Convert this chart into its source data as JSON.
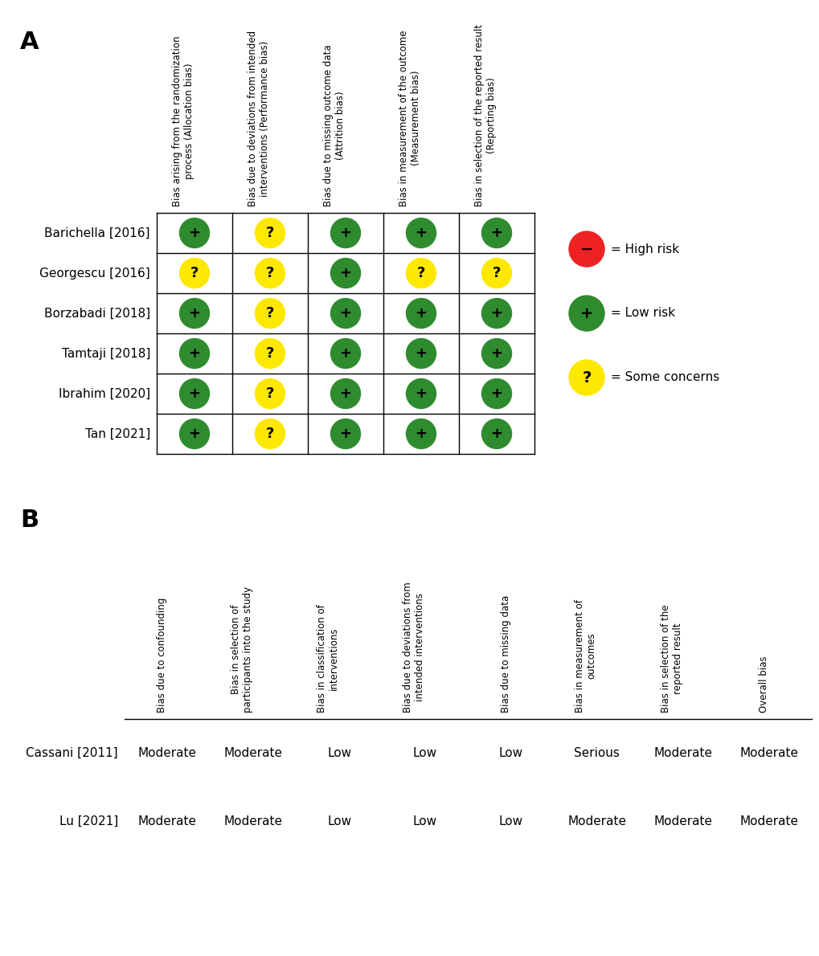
{
  "panel_A_label": "A",
  "panel_B_label": "B",
  "A_col_headers": [
    "Bias arising from the randomization\nprocess (Allocation bias)",
    "Bias due to deviations from intended\ninterventions (Performance bias)",
    "Bias due to missing outcome data\n(Attrition bias)",
    "Bias in measurement of the outcome\n(Measurement bias)",
    "Bias in selection of the reported result\n(Reporting bias)"
  ],
  "A_rows": [
    "Barichella [2016]",
    "Georgescu [2016]",
    "Borzabadi [2018]",
    "Tamtaji [2018]",
    "Ibrahim [2020]",
    "Tan [2021]"
  ],
  "A_data": [
    [
      "G",
      "Y",
      "G",
      "G",
      "G"
    ],
    [
      "Y",
      "Y",
      "G",
      "Y",
      "Y"
    ],
    [
      "G",
      "Y",
      "G",
      "G",
      "G"
    ],
    [
      "G",
      "Y",
      "G",
      "G",
      "G"
    ],
    [
      "G",
      "Y",
      "G",
      "G",
      "G"
    ],
    [
      "G",
      "Y",
      "G",
      "G",
      "G"
    ]
  ],
  "B_col_headers": [
    "Bias due to confounding",
    "Bias in selection of\nparticipants into the study",
    "Bias in classification of\ninterventions",
    "Bias due to deviations from\nintended interventions",
    "Bias due to missing data",
    "Bias in measurement of\noutcomes",
    "Bias in selection of the\nreported result",
    "Overall bias"
  ],
  "B_rows": [
    "Cassani [2011]",
    "Lu [2021]"
  ],
  "B_data": [
    [
      "Moderate",
      "Moderate",
      "Low",
      "Low",
      "Low",
      "Serious",
      "Moderate",
      "Moderate"
    ],
    [
      "Moderate",
      "Moderate",
      "Low",
      "Low",
      "Low",
      "Moderate",
      "Moderate",
      "Moderate"
    ]
  ],
  "color_green": "#2E8B2E",
  "color_yellow": "#FFE800",
  "color_red": "#EE2222",
  "bg_color": "#FFFFFF",
  "legend_colors": [
    "#EE2222",
    "#2E8B2E",
    "#FFE800"
  ],
  "legend_symbols": [
    "−",
    "+",
    "?"
  ],
  "legend_labels": [
    "= High risk",
    "= Low risk",
    "= Some concerns"
  ]
}
